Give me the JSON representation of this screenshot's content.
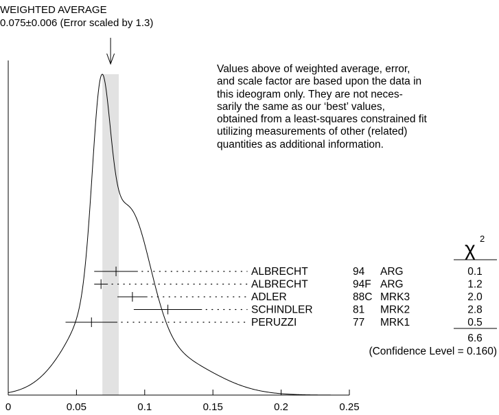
{
  "chart_data": {
    "type": "ideogram",
    "heading": {
      "title": "WEIGHTED AVERAGE",
      "value_line": "0.075±0.006 (Error scaled by 1.3)"
    },
    "weighted_average": 0.075,
    "error": 0.006,
    "scale_factor": 1.3,
    "band": [
      0.069,
      0.081
    ],
    "note": [
      "Values above of weighted average, error,",
      "and scale factor are based upon the data in",
      "this ideogram only.  They are not neces-",
      "sarily the same as our ‘best’ values,",
      "obtained from a least-squares constrained fit",
      "utilizing measurements of other (related)",
      "quantities as additional information."
    ],
    "xlim": [
      0,
      0.25
    ],
    "x_ticks": [
      0,
      0.05,
      0.1,
      0.15,
      0.2,
      0.25
    ],
    "x_tick_labels": [
      "0",
      "0.05",
      "0.1",
      "0.15",
      "0.2",
      "0.25"
    ],
    "chi2_symbol": "χ",
    "chi2_exponent": "2",
    "measurements": [
      {
        "author": "ALBRECHT",
        "year": "94",
        "doc": "ARG",
        "value": 0.079,
        "error": 0.016,
        "chi2": "0.1"
      },
      {
        "author": "ALBRECHT",
        "year": "94F",
        "doc": "ARG",
        "value": 0.068,
        "error": 0.005,
        "chi2": "1.2"
      },
      {
        "author": "ADLER",
        "year": "88C",
        "doc": "MRK3",
        "value": 0.091,
        "error": 0.011,
        "chi2": "2.0"
      },
      {
        "author": "SCHINDLER",
        "year": "81",
        "doc": "MRK2",
        "value": 0.117,
        "error": 0.025,
        "chi2": "2.8"
      },
      {
        "author": "PERUZZI",
        "year": "77",
        "doc": "MRK1",
        "value": 0.061,
        "error": 0.019,
        "chi2": "0.5"
      }
    ],
    "chi2_total": "6.6",
    "confidence_level": "(Confidence Level = 0.160)"
  }
}
